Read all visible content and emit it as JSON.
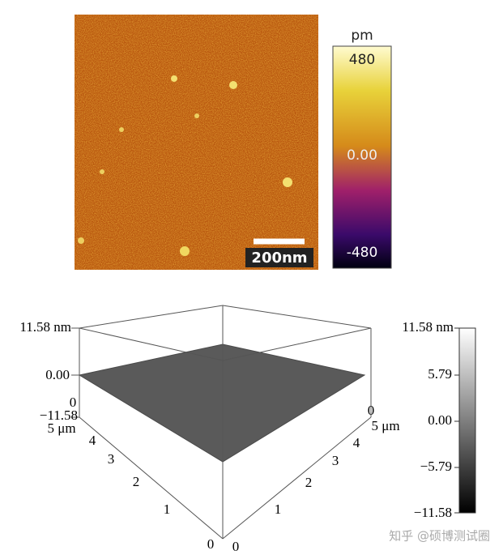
{
  "top_panel": {
    "colorbar_unit": "pm",
    "colorbar_labels": [
      "480",
      "0.00",
      "-480"
    ],
    "scale_bar": "200nm"
  },
  "bottom_panel": {
    "z_labels": [
      "11.58 nm",
      "0.00",
      "−11.58"
    ],
    "left_axis_labels": [
      "5 μm",
      "4",
      "3",
      "2",
      "1",
      "0"
    ],
    "right_axis_labels": [
      "5 μm",
      "4",
      "3",
      "2",
      "1",
      "0"
    ],
    "corner_labels": [
      "0",
      "0"
    ],
    "colorbar_labels": [
      "11.58 nm",
      "5.79",
      "0.00",
      "−5.79",
      "−11.58"
    ]
  },
  "watermark": "知乎 @硕博测试圈"
}
